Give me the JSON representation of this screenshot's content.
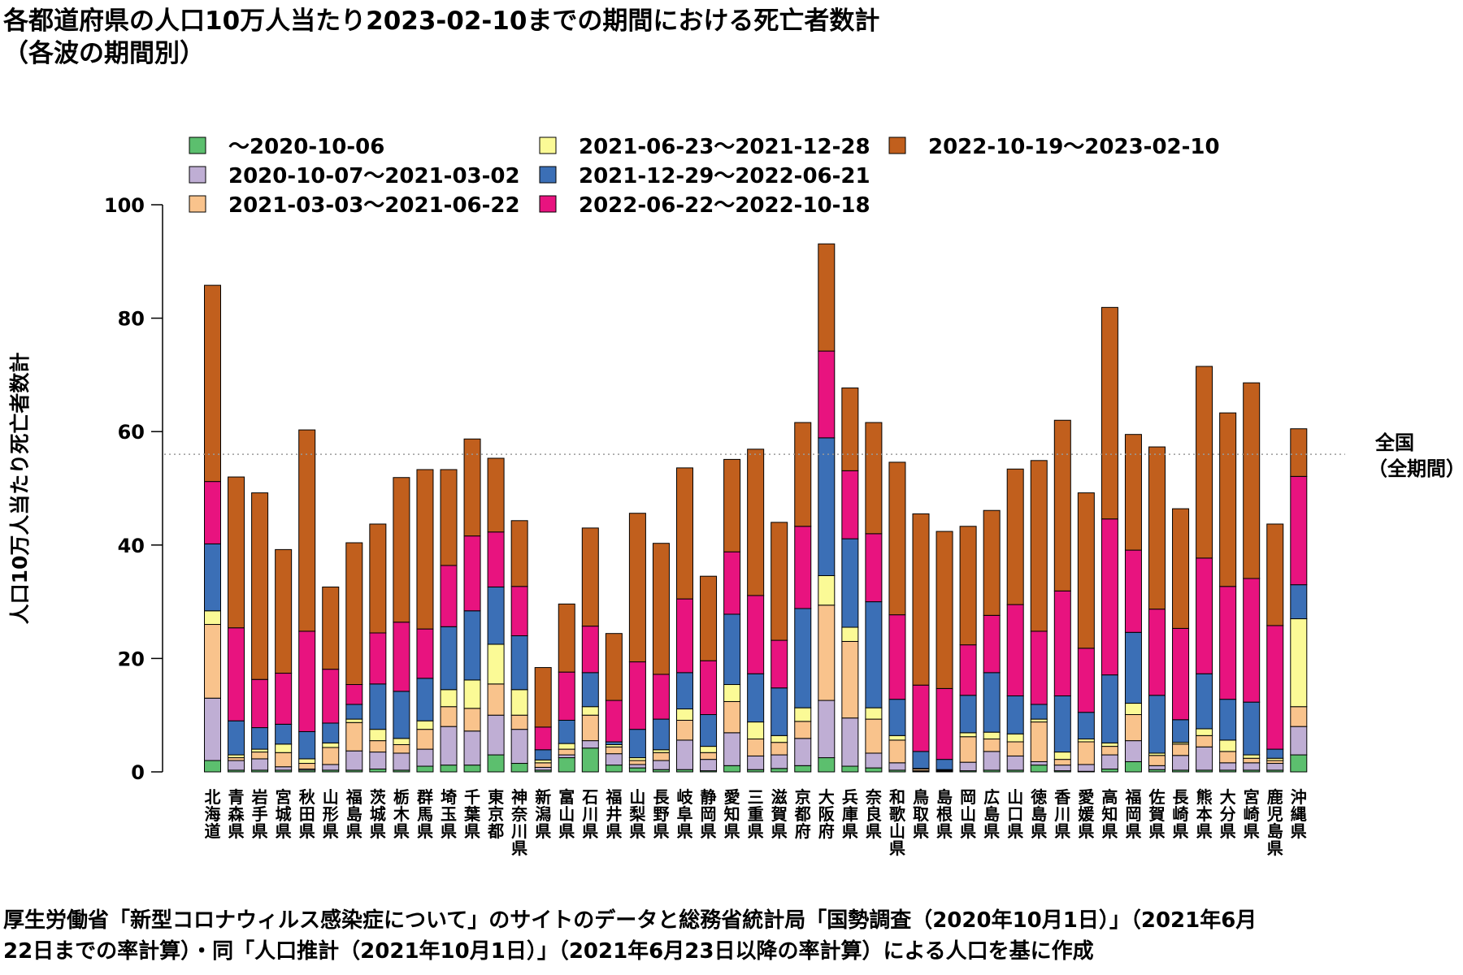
{
  "title": "各都道府県の人口10万人当たり2023-02-10までの期間における死亡者数計",
  "subtitle": "（各波の期間別）",
  "source_line1": "厚生労働省「新型コロナウィルス感染症について」のサイトのデータと総務省統計局「国勢調査（2020年10月1日）」（2021年6月",
  "source_line2": "22日までの率計算）・同「人口推計（2021年10月1日）」（2021年6月23日以降の率計算）による人口を基に作成",
  "chart_data": {
    "type": "bar",
    "stacked": true,
    "ylabel": "人口10万人当たり死亡者数計",
    "xlabel": "",
    "ylim": [
      0,
      100
    ],
    "yticks": [
      0,
      20,
      40,
      60,
      80,
      100
    ],
    "reference_line": {
      "value": 56,
      "label_line1": "全国",
      "label_line2": "（全期間）",
      "style": "dotted"
    },
    "legend_position": "top",
    "categories": [
      "北海道",
      "青森県",
      "岩手県",
      "宮城県",
      "秋田県",
      "山形県",
      "福島県",
      "茨城県",
      "栃木県",
      "群馬県",
      "埼玉県",
      "千葉県",
      "東京都",
      "神奈川県",
      "新潟県",
      "富山県",
      "石川県",
      "福井県",
      "山梨県",
      "長野県",
      "岐阜県",
      "静岡県",
      "愛知県",
      "三重県",
      "滋賀県",
      "京都府",
      "大阪府",
      "兵庫県",
      "奈良県",
      "和歌山県",
      "鳥取県",
      "島根県",
      "岡山県",
      "広島県",
      "山口県",
      "徳島県",
      "香川県",
      "愛媛県",
      "高知県",
      "福岡県",
      "佐賀県",
      "長崎県",
      "熊本県",
      "大分県",
      "宮崎県",
      "鹿児島県",
      "沖縄県"
    ],
    "series": [
      {
        "name": "～2020-10-06",
        "color": "#5cbf6e",
        "values": [
          2,
          0.3,
          0.3,
          0.3,
          0.3,
          0.3,
          0.3,
          0.5,
          0.3,
          1,
          1.2,
          1.2,
          3,
          1.5,
          0.3,
          2.5,
          4.2,
          1.2,
          0.7,
          0.4,
          0.4,
          0.2,
          1.1,
          0.4,
          0.6,
          1.1,
          2.5,
          1,
          0.7,
          0.3,
          0.1,
          0.1,
          0.2,
          0.3,
          0.3,
          1.2,
          0.2,
          0.1,
          0.5,
          1.8,
          0.4,
          0.3,
          0.3,
          0.3,
          0.3,
          0.3,
          3
        ]
      },
      {
        "name": "2020-10-07～2021-03-02",
        "color": "#bfaed4",
        "values": [
          11,
          1.7,
          2,
          0.6,
          0.2,
          1,
          3.4,
          3,
          3,
          3,
          6.8,
          6,
          7,
          6,
          0.5,
          0.5,
          1.3,
          2,
          0.6,
          1.6,
          5.2,
          2,
          5.8,
          2.4,
          2.4,
          4.8,
          10.1,
          8.5,
          2.6,
          1.3,
          0.1,
          0.1,
          1.5,
          3.3,
          2.5,
          0.6,
          1,
          1.2,
          2.5,
          3.7,
          0.7,
          2.6,
          4.1,
          1.3,
          1.3,
          1.2,
          5
        ]
      },
      {
        "name": "2021-03-03～2021-06-22",
        "color": "#f9c38c",
        "values": [
          13,
          0.5,
          1.2,
          2.5,
          1,
          3,
          5,
          2,
          1.5,
          3.5,
          3.5,
          4,
          5.5,
          2.5,
          0.8,
          1,
          4.5,
          1.2,
          0.7,
          1.4,
          3.5,
          1.2,
          5.5,
          3,
          2.2,
          3,
          16.8,
          13.5,
          6,
          4,
          0.3,
          0.1,
          4.5,
          2.2,
          2.5,
          7,
          1,
          4,
          1.5,
          4.6,
          1.8,
          2,
          2,
          2,
          0.8,
          0.5,
          3.5
        ]
      },
      {
        "name": "2021-06-23～2021-12-28",
        "color": "#fbfa96",
        "values": [
          2.4,
          0.5,
          0.5,
          1.5,
          0.8,
          0.8,
          0.6,
          2,
          1.1,
          1.5,
          3,
          5,
          7,
          4.5,
          0.5,
          1,
          1.5,
          0.4,
          0.5,
          0.5,
          2,
          1.1,
          3,
          3,
          1.2,
          2.4,
          5.2,
          2.5,
          2,
          0.8,
          0.1,
          0.1,
          0.7,
          1.2,
          1.4,
          0.5,
          1.3,
          0.5,
          0.6,
          2,
          0.4,
          0.3,
          1.2,
          2,
          0.6,
          0.4,
          15.5
        ]
      },
      {
        "name": "2021-12-29～2022-06-21",
        "color": "#3b6fb6",
        "values": [
          11.8,
          6,
          3.8,
          3.5,
          4.8,
          3.5,
          2.6,
          8,
          8.3,
          7.5,
          11.1,
          12.2,
          10.1,
          9.5,
          1.8,
          4.1,
          6,
          0.5,
          5,
          5.4,
          6.4,
          5.6,
          12.4,
          8.5,
          8.4,
          17.5,
          24.3,
          15.6,
          18.7,
          6.4,
          3,
          1.8,
          6.6,
          10.5,
          6.7,
          2.6,
          9.9,
          4.7,
          12,
          12.5,
          10.2,
          4,
          9.7,
          7.2,
          9.3,
          1.6,
          6
        ]
      },
      {
        "name": "2022-06-22～2022-10-18",
        "color": "#e8137f",
        "values": [
          11,
          16.4,
          8.5,
          9,
          17.7,
          9.5,
          3.5,
          9,
          12.2,
          8.7,
          10.8,
          13.2,
          9.7,
          8.7,
          4,
          8.5,
          8.2,
          7.3,
          11.9,
          7.9,
          13,
          9.5,
          11,
          13.8,
          8.4,
          14.5,
          15.3,
          12,
          12,
          14.9,
          11.7,
          12.5,
          8.9,
          10.1,
          16.1,
          12.9,
          18.5,
          11.3,
          27.5,
          14.5,
          15.2,
          16.1,
          20.4,
          19.9,
          21.8,
          21.8,
          19.1
        ]
      },
      {
        "name": "2022-10-19～2023-02-10",
        "color": "#c15f1d",
        "values": [
          34.6,
          26.6,
          32.9,
          21.8,
          35.5,
          14.5,
          25,
          19.2,
          25.5,
          28.1,
          16.9,
          17.1,
          13,
          11.6,
          10.5,
          12,
          17.3,
          11.8,
          26.2,
          23.1,
          23.1,
          14.9,
          16.3,
          25.8,
          20.8,
          18.3,
          18.9,
          14.6,
          19.6,
          26.9,
          30.2,
          27.7,
          20.9,
          18.5,
          23.9,
          30.1,
          30.1,
          27.4,
          37.3,
          20.4,
          28.6,
          21.1,
          33.8,
          30.6,
          34.5,
          17.9,
          8.4
        ]
      }
    ]
  }
}
